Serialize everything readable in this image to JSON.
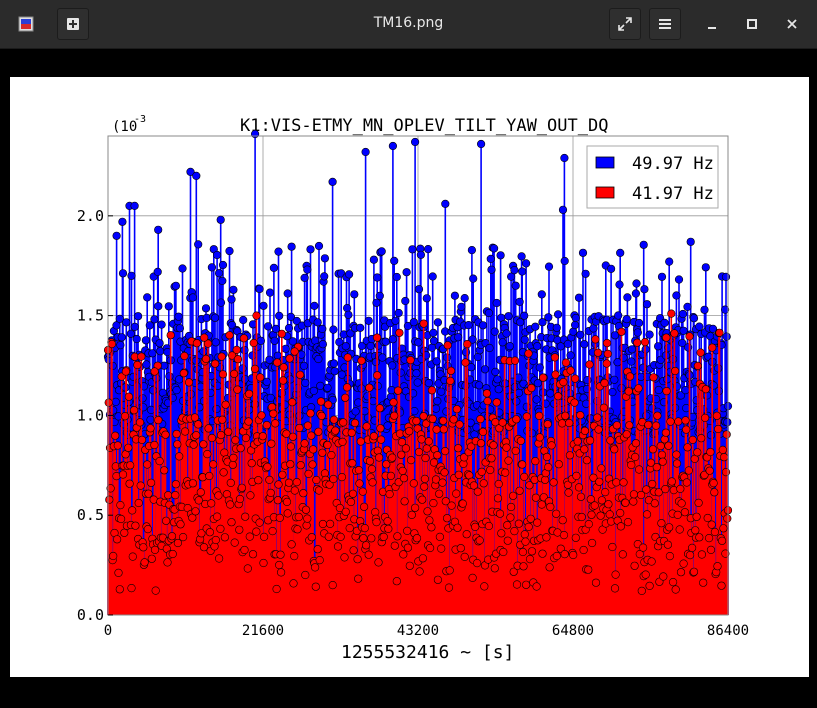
{
  "window": {
    "title": "TM16.png",
    "app_icon": "image-viewer-app-icon",
    "new_tab_icon": "plus-square-icon",
    "fullscreen_icon": "expand-arrows-icon",
    "menu_icon": "hamburger-menu-icon",
    "minimize_icon": "minimize-icon",
    "maximize_icon": "maximize-icon",
    "close_icon": "close-icon"
  },
  "chart_data": {
    "type": "line",
    "title": "K1:VIS-ETMY_MN_OPLEV_TILT_YAW_OUT_DQ",
    "xlabel": "1255532416 ~ [s]",
    "ylabel": "",
    "y_scale_label": "(10",
    "y_scale_exponent": "-3",
    "xlim": [
      0,
      86400
    ],
    "ylim": [
      0,
      0.0024
    ],
    "x_ticks": [
      "0",
      "21600",
      "43200",
      "64800",
      "86400"
    ],
    "y_ticks": [
      "0.0",
      "0.5",
      "1.0",
      "1.5",
      "2.0"
    ],
    "grid": true,
    "legend_position": "top-right",
    "series": [
      {
        "name": "49.97 Hz",
        "color": "#0000ff",
        "style": "stem with circle markers",
        "typical_range": [
          0.0009,
          0.0015
        ],
        "peak_points": [
          {
            "x": 1200,
            "y": 0.0019
          },
          {
            "x": 2000,
            "y": 0.00197
          },
          {
            "x": 3000,
            "y": 0.00205
          },
          {
            "x": 3700,
            "y": 0.00205
          },
          {
            "x": 7000,
            "y": 0.00193
          },
          {
            "x": 11500,
            "y": 0.00222
          },
          {
            "x": 12300,
            "y": 0.0022
          },
          {
            "x": 15700,
            "y": 0.00198
          },
          {
            "x": 20500,
            "y": 0.00241
          },
          {
            "x": 31300,
            "y": 0.00217
          },
          {
            "x": 35900,
            "y": 0.00232
          },
          {
            "x": 39700,
            "y": 0.00235
          },
          {
            "x": 42800,
            "y": 0.00237
          },
          {
            "x": 47000,
            "y": 0.00206
          },
          {
            "x": 52000,
            "y": 0.00236
          },
          {
            "x": 63600,
            "y": 0.00229
          },
          {
            "x": 63400,
            "y": 0.00203
          },
          {
            "x": 81200,
            "y": 0.00187
          },
          {
            "x": 86000,
            "y": 0.00153
          }
        ]
      },
      {
        "name": "41.97 Hz",
        "color": "#ff0000",
        "style": "stem with circle markers",
        "typical_range": [
          0.0003,
          0.001
        ],
        "peak_points": [
          {
            "x": 2500,
            "y": 0.00122
          },
          {
            "x": 6500,
            "y": 0.00122
          },
          {
            "x": 13400,
            "y": 0.00139
          },
          {
            "x": 20700,
            "y": 0.0015
          },
          {
            "x": 26000,
            "y": 0.00132
          },
          {
            "x": 37500,
            "y": 0.00139
          },
          {
            "x": 44000,
            "y": 0.00146
          },
          {
            "x": 58600,
            "y": 0.00131
          },
          {
            "x": 69500,
            "y": 0.00126
          },
          {
            "x": 77800,
            "y": 0.00139
          },
          {
            "x": 78500,
            "y": 0.00151
          },
          {
            "x": 84200,
            "y": 0.00134
          }
        ]
      }
    ]
  }
}
